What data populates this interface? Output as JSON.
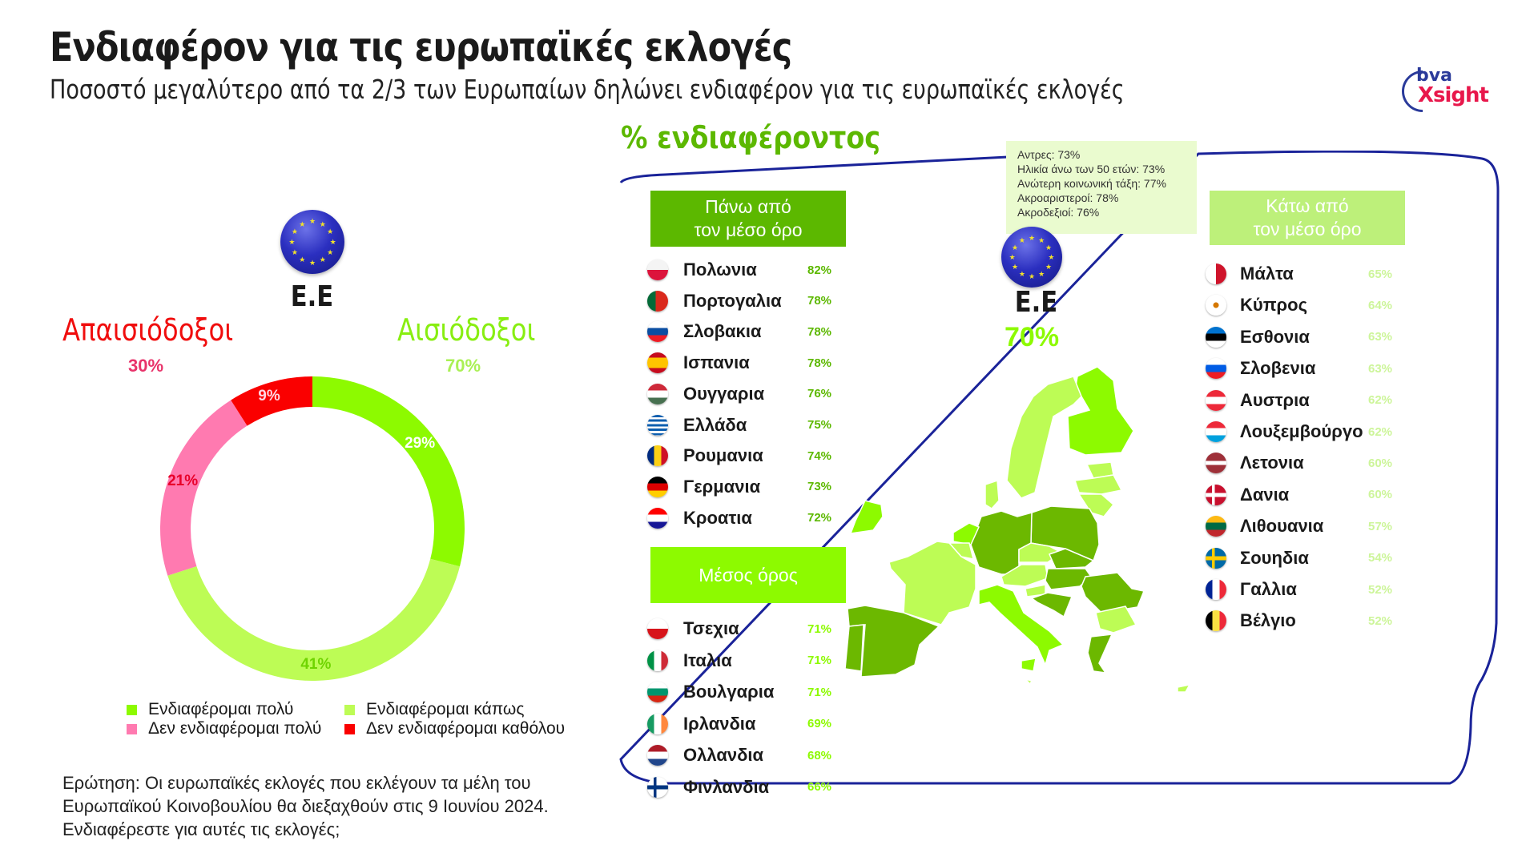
{
  "header": {
    "title": "Ενδιαφέρον για τις ευρωπαϊκές εκλογές",
    "subtitle": "Ποσοστό μεγαλύτερο από τα 2/3 των Ευρωπαίων δηλώνει ενδιαφέρον για τις ευρωπαϊκές εκλογές"
  },
  "logo": {
    "top": "bva",
    "bottom": "Xsight",
    "icon": "bva-xsight-logo-icon"
  },
  "left_panel": {
    "eu_label": "Ε.Ε",
    "pessimists_label": "Απαισιόδοξοι",
    "pessimists_value": "30%",
    "optimists_label": "Αισιόδοξοι",
    "optimists_value": "70%",
    "legend": [
      {
        "label": "Ενδιαφέρομαι πολύ",
        "color": "#8dfa00"
      },
      {
        "label": "Ενδιαφέρομαι κάπως",
        "color": "#bdfc55"
      },
      {
        "label": "Δεν ενδιαφέρομαι πολύ",
        "color": "#ff7ab0"
      },
      {
        "label": "Δεν ενδιαφέρομαι καθόλου",
        "color": "#fa0000"
      }
    ],
    "question": "Ερώτηση: Οι ευρωπαϊκές εκλογές που εκλέγουν τα μέλη του Ευρωπαϊκού Κοινοβουλίου θα διεξαχθούν στις 9 Ιουνίου 2024. Ενδιαφέρεστε για αυτές τις εκλογές;"
  },
  "right_panel": {
    "section_title": "% ενδιαφέροντος",
    "eu_label": "Ε.Ε",
    "eu_value": "70%",
    "notes": [
      "Αντρες: 73%",
      "Ηλικία άνω των 50 ετών: 73%",
      "Ανώτερη κοινωνική τάξη: 77%",
      "Ακροαριστεροί: 78%",
      "Ακροδεξιοί: 76%"
    ],
    "above_header_1": "Πάνω από",
    "above_header_2": "τον μέσο όρο",
    "avg_header": "Μέσος όρος",
    "below_header_1": "Κάτω από",
    "below_header_2": "τον μέσο όρο",
    "colors": {
      "above": "#5cb800",
      "average": "#8dfa00",
      "below": "#bdf07a",
      "frame": "#1a2399"
    }
  },
  "chart_data": [
    {
      "type": "pie",
      "title": "Ε.Ε",
      "subtype": "donut",
      "categories": [
        "Ενδιαφέρομαι πολύ",
        "Ενδιαφέρομαι κάπως",
        "Δεν ενδιαφέρομαι πολύ",
        "Δεν ενδιαφέρομαι καθόλου"
      ],
      "values": [
        29,
        41,
        21,
        9
      ],
      "colors": [
        "#8dfa00",
        "#bdfc55",
        "#ff7ab0",
        "#fa0000"
      ],
      "labels": [
        "29%",
        "41%",
        "21%",
        "9%"
      ],
      "groups": [
        {
          "name": "Αισιόδοξοι",
          "value": 70
        },
        {
          "name": "Απαισιόδοξοι",
          "value": 30
        }
      ],
      "legend_position": "bottom"
    },
    {
      "type": "table",
      "title": "% ενδιαφέροντος",
      "eu_average": 70,
      "groups": [
        {
          "name": "Πάνω από τον μέσο όρο",
          "rows": [
            {
              "country": "Πολωνια",
              "value": "82%",
              "flag": "pl"
            },
            {
              "country": "Πορτογαλια",
              "value": "78%",
              "flag": "pt"
            },
            {
              "country": "Σλοβακια",
              "value": "78%",
              "flag": "sk"
            },
            {
              "country": "Ισπανια",
              "value": "78%",
              "flag": "es"
            },
            {
              "country": "Ουγγαρια",
              "value": "76%",
              "flag": "hu"
            },
            {
              "country": "Ελλάδα",
              "value": "75%",
              "flag": "gr"
            },
            {
              "country": "Ρουμανια",
              "value": "74%",
              "flag": "ro"
            },
            {
              "country": "Γερμανια",
              "value": "73%",
              "flag": "de"
            },
            {
              "country": "Κροατια",
              "value": "72%",
              "flag": "hr"
            }
          ]
        },
        {
          "name": "Μέσος όρος",
          "rows": [
            {
              "country": "Τσεχια",
              "value": "71%",
              "flag": "cz"
            },
            {
              "country": "Ιταλια",
              "value": "71%",
              "flag": "it"
            },
            {
              "country": "Βουλγαρια",
              "value": "71%",
              "flag": "bg"
            },
            {
              "country": "Ιρλανδια",
              "value": "69%",
              "flag": "ie"
            },
            {
              "country": "Ολλανδια",
              "value": "68%",
              "flag": "nl"
            },
            {
              "country": "Φινλανδια",
              "value": "66%",
              "flag": "fi"
            }
          ]
        },
        {
          "name": "Κάτω από τον μέσο όρο",
          "rows": [
            {
              "country": "Μάλτα",
              "value": "65%",
              "flag": "mt"
            },
            {
              "country": "Κύπρος",
              "value": "64%",
              "flag": "cy"
            },
            {
              "country": "Εσθονια",
              "value": "63%",
              "flag": "ee"
            },
            {
              "country": "Σλοβενια",
              "value": "63%",
              "flag": "si"
            },
            {
              "country": "Αυστρια",
              "value": "62%",
              "flag": "at"
            },
            {
              "country": "Λουξεμβούργο",
              "value": "62%",
              "flag": "lu"
            },
            {
              "country": "Λετονια",
              "value": "60%",
              "flag": "lv"
            },
            {
              "country": "Δανια",
              "value": "60%",
              "flag": "dk"
            },
            {
              "country": "Λιθουανια",
              "value": "57%",
              "flag": "lt"
            },
            {
              "country": "Σουηδια",
              "value": "54%",
              "flag": "se"
            },
            {
              "country": "Γαλλια",
              "value": "52%",
              "flag": "fr"
            },
            {
              "country": "Βέλγιο",
              "value": "52%",
              "flag": "be"
            }
          ]
        }
      ]
    }
  ]
}
